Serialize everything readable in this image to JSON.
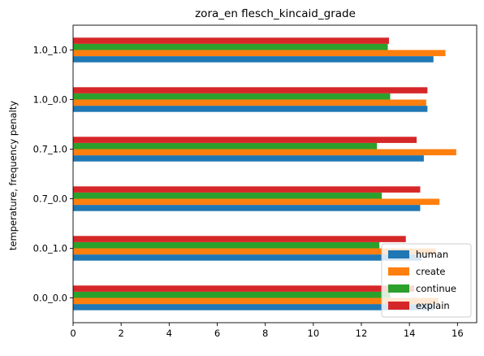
{
  "chart_data": {
    "type": "bar",
    "orientation": "horizontal",
    "title": "zora_en flesch_kincaid_grade",
    "xlabel": "",
    "ylabel": "temperature, frequency penalty",
    "xlim": [
      0,
      16.8
    ],
    "xticks": [
      0,
      2,
      4,
      6,
      8,
      10,
      12,
      14,
      16
    ],
    "grid": false,
    "legend_position": "lower-right",
    "categories": [
      "0.0_0.0",
      "0.0_1.0",
      "0.7_0.0",
      "0.7_1.0",
      "1.0_0.0",
      "1.0_1.0"
    ],
    "series": [
      {
        "name": "human",
        "color": "#1f77b4",
        "values": [
          15.0,
          14.5,
          14.45,
          14.6,
          14.75,
          15.0
        ]
      },
      {
        "name": "create",
        "color": "#ff7f0e",
        "values": [
          15.2,
          15.1,
          15.25,
          15.95,
          14.7,
          15.5
        ]
      },
      {
        "name": "continue",
        "color": "#2ca02c",
        "values": [
          13.2,
          12.75,
          12.85,
          12.65,
          13.2,
          13.1
        ]
      },
      {
        "name": "explain",
        "color": "#d62728",
        "values": [
          14.2,
          13.85,
          14.45,
          14.3,
          14.75,
          13.15
        ]
      }
    ]
  }
}
